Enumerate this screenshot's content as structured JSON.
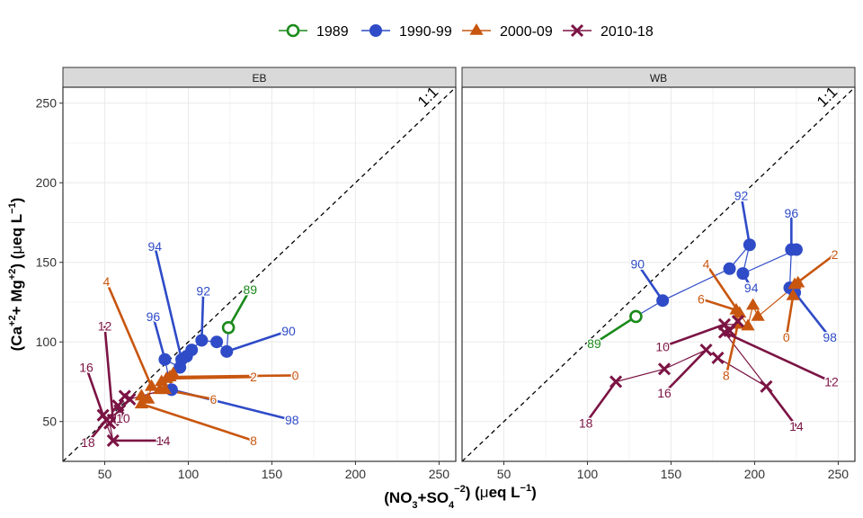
{
  "chart_data": {
    "type": "scatter",
    "xlabel_parts": {
      "a": "(NO",
      "a_sub": "3",
      "b": "+SO",
      "b_sub": "4",
      "b_sup": "−2",
      "c": ") (",
      "mu": "μ",
      "d": "eq L",
      "d_sup": "−1",
      "e": ")"
    },
    "ylabel_parts": {
      "a": "(Ca",
      "a_sup": "+2",
      "b": "+ Mg",
      "b_sup": "+2",
      "c": ") (",
      "mu": "μ",
      "d": "eq L",
      "d_sup": "−1",
      "e": ")"
    },
    "xlim": [
      25,
      260
    ],
    "ylim": [
      25,
      260
    ],
    "xticks": [
      50,
      100,
      150,
      200,
      250
    ],
    "yticks": [
      50,
      100,
      150,
      200,
      250
    ],
    "grid": true,
    "legend_position": "top",
    "ref_line_label": "1:1",
    "series": [
      {
        "name": "1989",
        "color": "#1a8a1a",
        "marker": "open-circle"
      },
      {
        "name": "1990-99",
        "color": "#2f4bc7",
        "marker": "filled-circle"
      },
      {
        "name": "2000-09",
        "color": "#c8560f",
        "marker": "triangle"
      },
      {
        "name": "2010-18",
        "color": "#7b1444",
        "marker": "cross"
      }
    ],
    "panels": [
      {
        "title": "EB",
        "points": [
          {
            "s": 0,
            "x": 124,
            "y": 109,
            "label": "89",
            "lx": 137,
            "ly": 133
          },
          {
            "s": 1,
            "x": 123,
            "y": 94,
            "label": "90",
            "lx": 160,
            "ly": 107
          },
          {
            "s": 1,
            "x": 108,
            "y": 101,
            "label": "92",
            "lx": 109,
            "ly": 132
          },
          {
            "s": 1,
            "x": 96,
            "y": 89,
            "label": "94",
            "lx": 80,
            "ly": 160
          },
          {
            "s": 1,
            "x": 86,
            "y": 89,
            "label": "96",
            "lx": 79,
            "ly": 116
          },
          {
            "s": 1,
            "x": 90,
            "y": 70,
            "label": "98",
            "lx": 162,
            "ly": 51
          },
          {
            "s": 1,
            "x": 95,
            "y": 84
          },
          {
            "s": 1,
            "x": 102,
            "y": 95
          },
          {
            "s": 1,
            "x": 117,
            "y": 100
          },
          {
            "s": 1,
            "x": 99,
            "y": 91
          },
          {
            "s": 2,
            "x": 89,
            "y": 78,
            "label": "0",
            "lx": 164,
            "ly": 79
          },
          {
            "s": 2,
            "x": 87,
            "y": 77,
            "label": "2",
            "lx": 139,
            "ly": 78
          },
          {
            "s": 2,
            "x": 78,
            "y": 72,
            "label": "4",
            "lx": 51,
            "ly": 138
          },
          {
            "s": 2,
            "x": 86,
            "y": 70,
            "label": "6",
            "lx": 115,
            "ly": 64
          },
          {
            "s": 2,
            "x": 72,
            "y": 61,
            "label": "8",
            "lx": 139,
            "ly": 38
          },
          {
            "s": 2,
            "x": 76,
            "y": 64
          },
          {
            "s": 2,
            "x": 83,
            "y": 70
          },
          {
            "s": 2,
            "x": 91,
            "y": 80
          },
          {
            "s": 2,
            "x": 72,
            "y": 66
          },
          {
            "s": 2,
            "x": 84,
            "y": 75
          },
          {
            "s": 3,
            "x": 59,
            "y": 57,
            "label": "10",
            "lx": 61,
            "ly": 52
          },
          {
            "s": 3,
            "x": 55,
            "y": 51,
            "label": "12",
            "lx": 50,
            "ly": 110
          },
          {
            "s": 3,
            "x": 55,
            "y": 38,
            "label": "14",
            "lx": 85,
            "ly": 38
          },
          {
            "s": 3,
            "x": 49,
            "y": 54,
            "label": "16",
            "lx": 39,
            "ly": 84
          },
          {
            "s": 3,
            "x": 51,
            "y": 51,
            "label": "18",
            "lx": 40,
            "ly": 37
          },
          {
            "s": 3,
            "x": 62,
            "y": 66
          },
          {
            "s": 3,
            "x": 58,
            "y": 60
          },
          {
            "s": 3,
            "x": 65,
            "y": 64
          },
          {
            "s": 3,
            "x": 53,
            "y": 49
          }
        ],
        "path": [
          [
            124,
            109
          ],
          [
            123,
            94
          ],
          [
            117,
            100
          ],
          [
            108,
            101
          ],
          [
            102,
            95
          ],
          [
            99,
            91
          ],
          [
            96,
            89
          ],
          [
            95,
            84
          ],
          [
            86,
            89
          ],
          [
            90,
            70
          ],
          [
            89,
            78
          ],
          [
            87,
            77
          ],
          [
            91,
            80
          ],
          [
            84,
            75
          ],
          [
            83,
            70
          ],
          [
            78,
            72
          ],
          [
            76,
            64
          ],
          [
            72,
            61
          ],
          [
            72,
            66
          ],
          [
            86,
            70
          ],
          [
            65,
            64
          ],
          [
            62,
            66
          ],
          [
            58,
            60
          ],
          [
            59,
            57
          ],
          [
            55,
            51
          ],
          [
            53,
            49
          ],
          [
            55,
            38
          ],
          [
            49,
            54
          ],
          [
            51,
            51
          ]
        ]
      },
      {
        "title": "WB",
        "points": [
          {
            "s": 0,
            "x": 129,
            "y": 116,
            "label": "89",
            "lx": 104,
            "ly": 99
          },
          {
            "s": 1,
            "x": 145,
            "y": 126,
            "label": "90",
            "lx": 130,
            "ly": 149
          },
          {
            "s": 1,
            "x": 197,
            "y": 161,
            "label": "92",
            "lx": 192,
            "ly": 192
          },
          {
            "s": 1,
            "x": 193,
            "y": 143,
            "label": "94",
            "lx": 198,
            "ly": 134
          },
          {
            "s": 1,
            "x": 222,
            "y": 158,
            "label": "96",
            "lx": 222,
            "ly": 181
          },
          {
            "s": 1,
            "x": 224,
            "y": 131,
            "label": "98",
            "lx": 245,
            "ly": 103
          },
          {
            "s": 1,
            "x": 185,
            "y": 146
          },
          {
            "s": 1,
            "x": 225,
            "y": 158
          },
          {
            "s": 1,
            "x": 221,
            "y": 134
          },
          {
            "s": 2,
            "x": 223,
            "y": 129,
            "label": "0",
            "lx": 219,
            "ly": 103
          },
          {
            "s": 2,
            "x": 224,
            "y": 136,
            "label": "2",
            "lx": 248,
            "ly": 155
          },
          {
            "s": 2,
            "x": 191,
            "y": 118,
            "label": "4",
            "lx": 171,
            "ly": 149
          },
          {
            "s": 2,
            "x": 189,
            "y": 120,
            "label": "6",
            "lx": 168,
            "ly": 127
          },
          {
            "s": 2,
            "x": 190,
            "y": 111,
            "label": "8",
            "lx": 183,
            "ly": 79
          },
          {
            "s": 2,
            "x": 196,
            "y": 110
          },
          {
            "s": 2,
            "x": 199,
            "y": 123
          },
          {
            "s": 2,
            "x": 202,
            "y": 116
          },
          {
            "s": 2,
            "x": 226,
            "y": 137
          },
          {
            "s": 3,
            "x": 182,
            "y": 111,
            "label": "10",
            "lx": 145,
            "ly": 97
          },
          {
            "s": 3,
            "x": 182,
            "y": 106,
            "label": "12",
            "lx": 246,
            "ly": 75
          },
          {
            "s": 3,
            "x": 207,
            "y": 72,
            "label": "14",
            "lx": 225,
            "ly": 47
          },
          {
            "s": 3,
            "x": 171,
            "y": 95,
            "label": "16",
            "lx": 146,
            "ly": 68
          },
          {
            "s": 3,
            "x": 117,
            "y": 75,
            "label": "18",
            "lx": 99,
            "ly": 49
          },
          {
            "s": 3,
            "x": 146,
            "y": 83
          },
          {
            "s": 3,
            "x": 178,
            "y": 90
          },
          {
            "s": 3,
            "x": 190,
            "y": 113
          },
          {
            "s": 3,
            "x": 185,
            "y": 107
          }
        ],
        "path": [
          [
            129,
            116
          ],
          [
            145,
            126
          ],
          [
            185,
            146
          ],
          [
            197,
            161
          ],
          [
            193,
            143
          ],
          [
            225,
            158
          ],
          [
            222,
            158
          ],
          [
            221,
            134
          ],
          [
            224,
            131
          ],
          [
            223,
            129
          ],
          [
            226,
            137
          ],
          [
            202,
            116
          ],
          [
            199,
            123
          ],
          [
            196,
            110
          ],
          [
            191,
            118
          ],
          [
            189,
            120
          ],
          [
            190,
            111
          ],
          [
            182,
            111
          ],
          [
            185,
            107
          ],
          [
            190,
            113
          ],
          [
            182,
            106
          ],
          [
            207,
            72
          ],
          [
            178,
            90
          ],
          [
            171,
            95
          ],
          [
            146,
            83
          ],
          [
            117,
            75
          ]
        ]
      }
    ]
  }
}
